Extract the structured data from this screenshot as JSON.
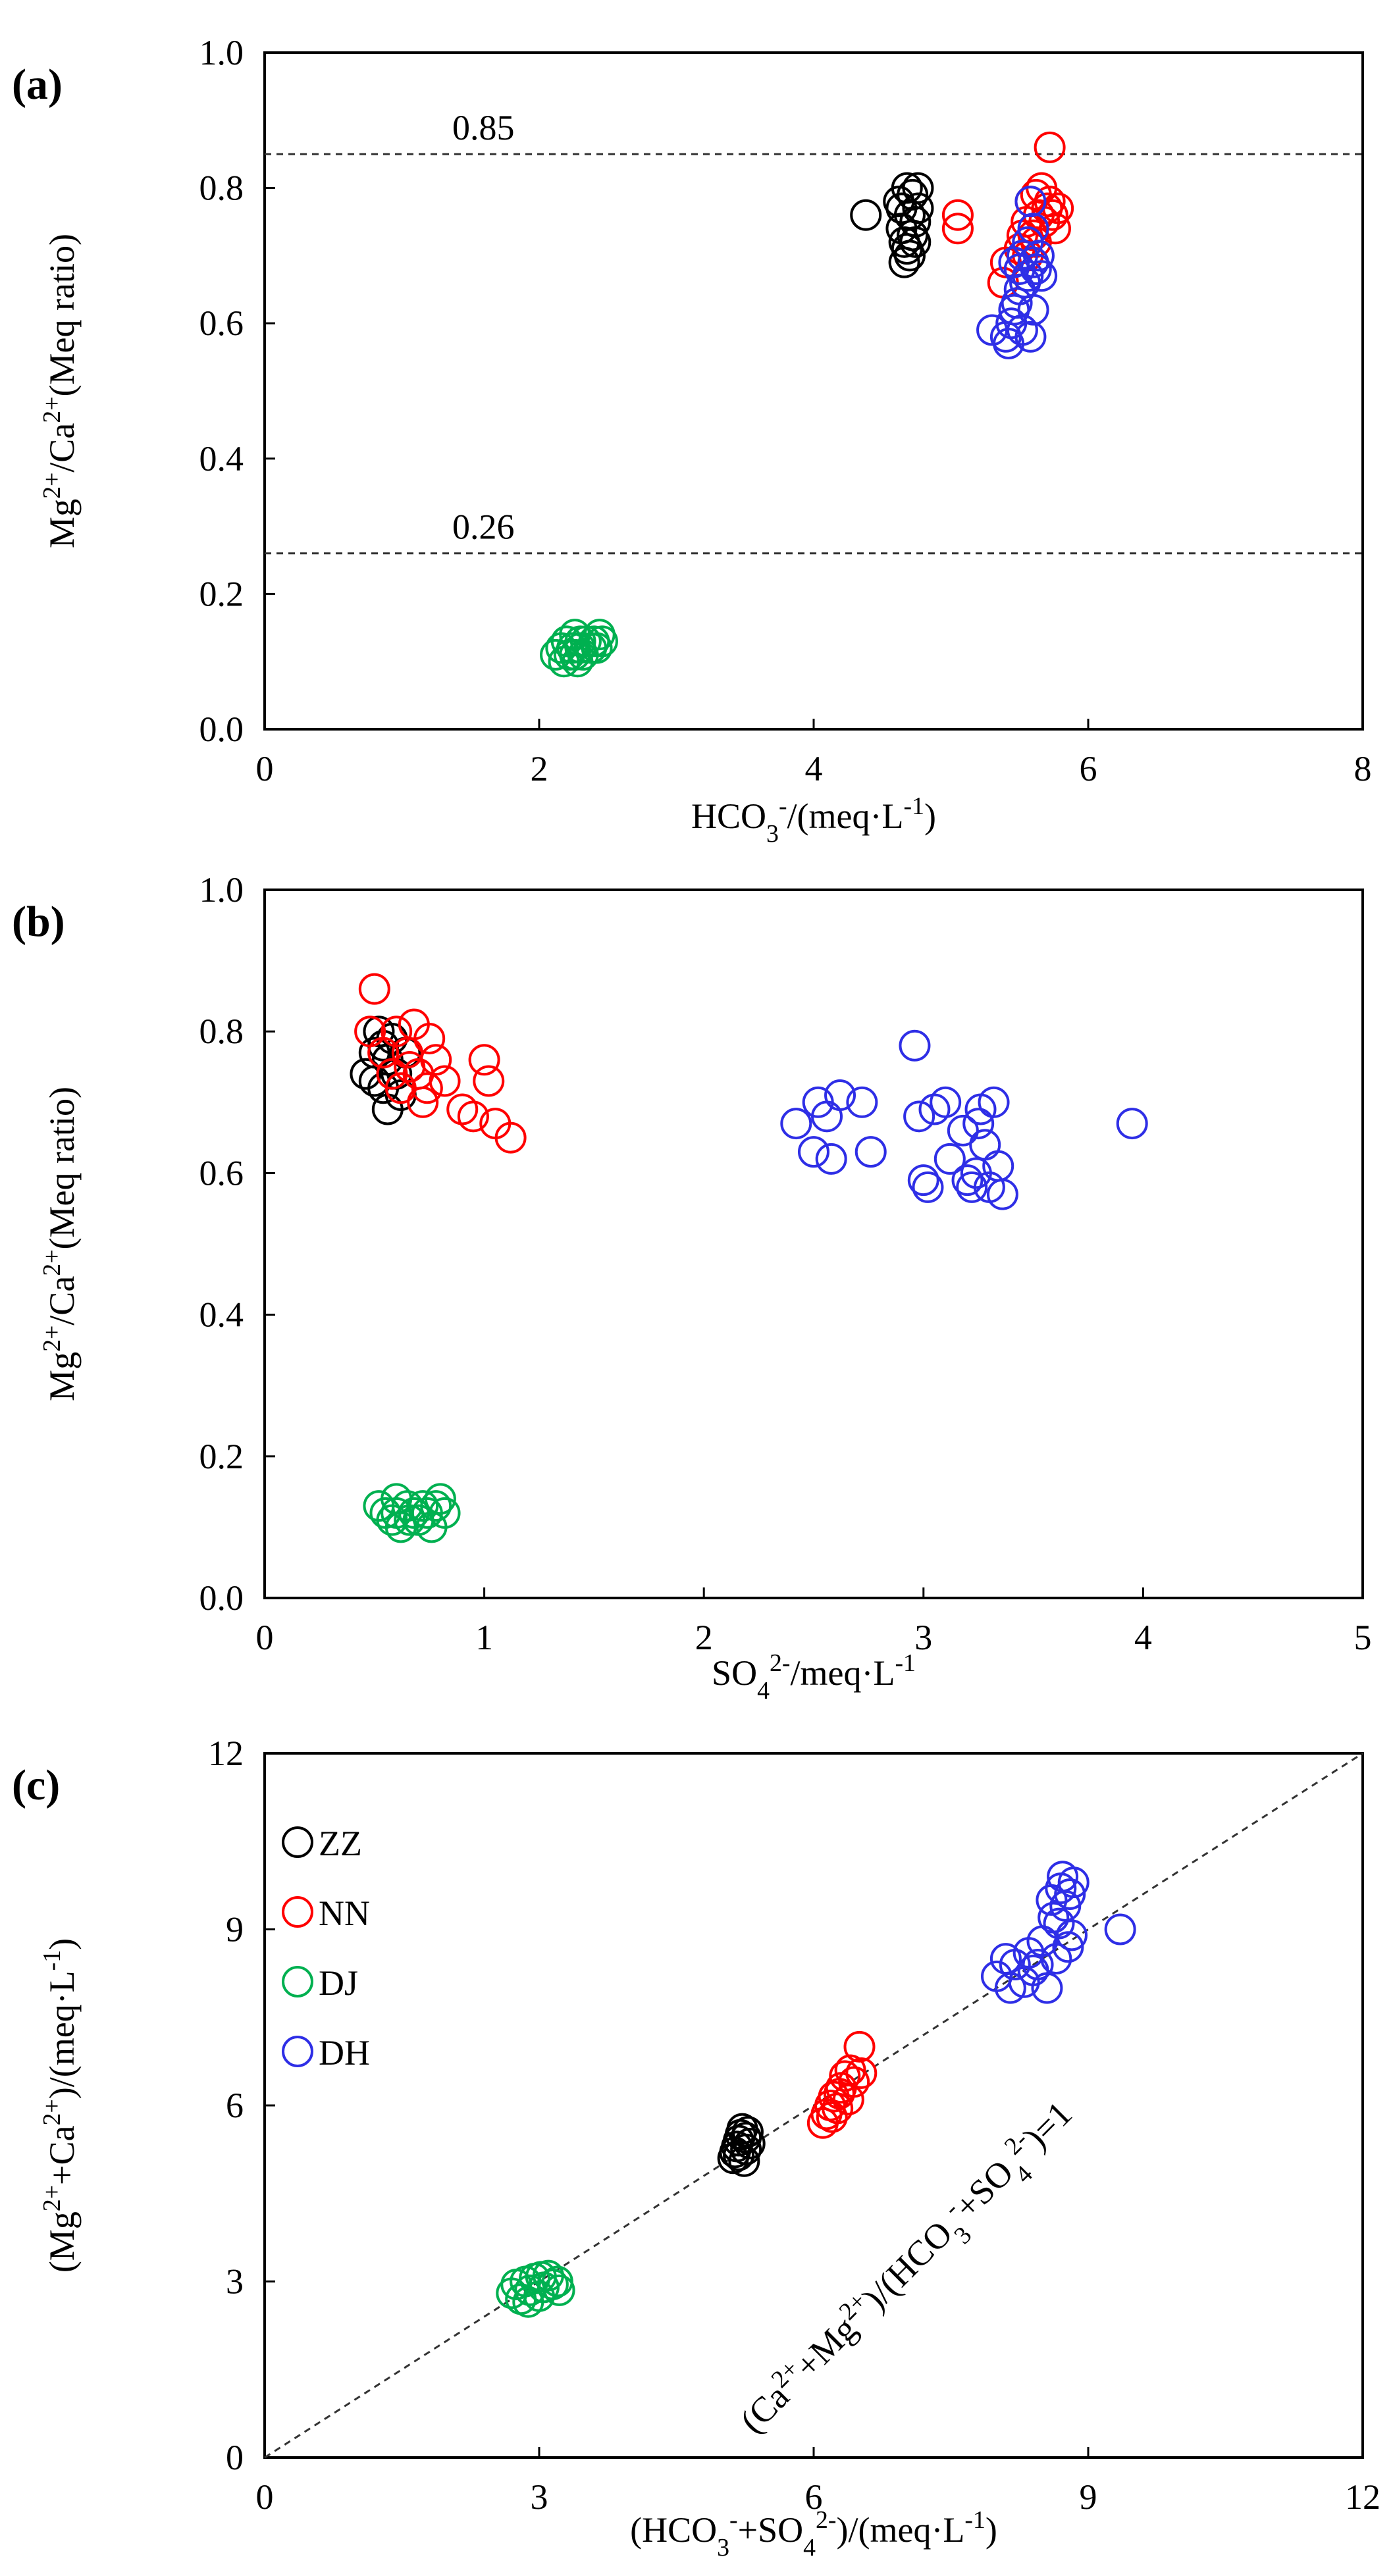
{
  "figure": {
    "panels": [
      "(a)",
      "(b)",
      "(c)"
    ]
  },
  "colors": {
    "ZZ": "#000000",
    "NN": "#ff0000",
    "DJ": "#00b050",
    "DH": "#2e2ee6"
  },
  "chart_data": [
    {
      "id": "a",
      "type": "scatter",
      "panel_label": "(a)",
      "xlabel": "HCO3-/(meq·L-1)",
      "ylabel": "Mg2+/Ca2+(Meq ratio)",
      "xlim": [
        0,
        8
      ],
      "ylim": [
        0,
        1.0
      ],
      "x_ticks": [
        0,
        2,
        4,
        6,
        8
      ],
      "x_tick_labels": [
        "0",
        "2",
        "4",
        "6",
        "8"
      ],
      "y_ticks": [
        0,
        0.2,
        0.4,
        0.6,
        0.8,
        1.0
      ],
      "y_tick_labels": [
        "0.0",
        "0.2",
        "0.4",
        "0.6",
        "0.8",
        "1.0"
      ],
      "reference_lines": [
        {
          "y": 0.85,
          "label": "0.85"
        },
        {
          "y": 0.26,
          "label": "0.26"
        }
      ],
      "series": [
        {
          "name": "ZZ",
          "points": [
            [
              4.38,
              0.76
            ],
            [
              4.62,
              0.78
            ],
            [
              4.64,
              0.74
            ],
            [
              4.66,
              0.72
            ],
            [
              4.68,
              0.8
            ],
            [
              4.7,
              0.76
            ],
            [
              4.7,
              0.7
            ],
            [
              4.72,
              0.79
            ],
            [
              4.72,
              0.73
            ],
            [
              4.74,
              0.75
            ],
            [
              4.66,
              0.69
            ],
            [
              4.76,
              0.77
            ],
            [
              4.68,
              0.71
            ],
            [
              4.64,
              0.77
            ],
            [
              4.74,
              0.72
            ],
            [
              4.76,
              0.8
            ]
          ]
        },
        {
          "name": "NN",
          "points": [
            [
              5.05,
              0.76
            ],
            [
              5.05,
              0.74
            ],
            [
              5.38,
              0.66
            ],
            [
              5.4,
              0.69
            ],
            [
              5.5,
              0.71
            ],
            [
              5.52,
              0.73
            ],
            [
              5.55,
              0.75
            ],
            [
              5.58,
              0.78
            ],
            [
              5.6,
              0.73
            ],
            [
              5.62,
              0.79
            ],
            [
              5.64,
              0.76
            ],
            [
              5.66,
              0.8
            ],
            [
              5.68,
              0.75
            ],
            [
              5.7,
              0.77
            ],
            [
              5.72,
              0.86
            ],
            [
              5.72,
              0.78
            ],
            [
              5.74,
              0.76
            ],
            [
              5.76,
              0.74
            ],
            [
              5.78,
              0.77
            ],
            [
              5.56,
              0.7
            ],
            [
              5.62,
              0.72
            ]
          ]
        },
        {
          "name": "DJ",
          "points": [
            [
              2.12,
              0.11
            ],
            [
              2.16,
              0.12
            ],
            [
              2.18,
              0.1
            ],
            [
              2.2,
              0.13
            ],
            [
              2.22,
              0.11
            ],
            [
              2.24,
              0.12
            ],
            [
              2.26,
              0.14
            ],
            [
              2.28,
              0.1
            ],
            [
              2.3,
              0.12
            ],
            [
              2.32,
              0.11
            ],
            [
              2.34,
              0.13
            ],
            [
              2.38,
              0.12
            ],
            [
              2.4,
              0.13
            ],
            [
              2.42,
              0.12
            ],
            [
              2.44,
              0.14
            ],
            [
              2.46,
              0.13
            ],
            [
              2.26,
              0.11
            ],
            [
              2.3,
              0.13
            ]
          ]
        },
        {
          "name": "DH",
          "points": [
            [
              5.3,
              0.59
            ],
            [
              5.4,
              0.58
            ],
            [
              5.42,
              0.57
            ],
            [
              5.44,
              0.6
            ],
            [
              5.46,
              0.62
            ],
            [
              5.48,
              0.63
            ],
            [
              5.5,
              0.65
            ],
            [
              5.5,
              0.68
            ],
            [
              5.52,
              0.7
            ],
            [
              5.54,
              0.66
            ],
            [
              5.56,
              0.67
            ],
            [
              5.56,
              0.72
            ],
            [
              5.58,
              0.78
            ],
            [
              5.6,
              0.69
            ],
            [
              5.6,
              0.62
            ],
            [
              5.62,
              0.68
            ],
            [
              5.64,
              0.7
            ],
            [
              5.66,
              0.67
            ],
            [
              5.52,
              0.59
            ],
            [
              5.58,
              0.58
            ],
            [
              5.46,
              0.69
            ],
            [
              5.6,
              0.74
            ]
          ]
        }
      ]
    },
    {
      "id": "b",
      "type": "scatter",
      "panel_label": "(b)",
      "xlabel": "SO42-/meq·L-1",
      "ylabel": "Mg2+/Ca2+(Meq ratio)",
      "xlim": [
        0,
        5
      ],
      "ylim": [
        0,
        1.0
      ],
      "x_ticks": [
        0,
        1,
        2,
        3,
        4,
        5
      ],
      "x_tick_labels": [
        "0",
        "1",
        "2",
        "3",
        "4",
        "5"
      ],
      "y_ticks": [
        0,
        0.2,
        0.4,
        0.6,
        0.8,
        1.0
      ],
      "y_tick_labels": [
        "0.0",
        "0.2",
        "0.4",
        "0.6",
        "0.8",
        "1.0"
      ],
      "reference_lines": [],
      "series": [
        {
          "name": "ZZ",
          "points": [
            [
              0.46,
              0.74
            ],
            [
              0.5,
              0.77
            ],
            [
              0.52,
              0.8
            ],
            [
              0.54,
              0.72
            ],
            [
              0.56,
              0.76
            ],
            [
              0.56,
              0.69
            ],
            [
              0.58,
              0.79
            ],
            [
              0.6,
              0.74
            ],
            [
              0.62,
              0.71
            ],
            [
              0.64,
              0.77
            ],
            [
              0.5,
              0.73
            ],
            [
              0.54,
              0.78
            ]
          ]
        },
        {
          "name": "NN",
          "points": [
            [
              0.5,
              0.86
            ],
            [
              0.48,
              0.8
            ],
            [
              0.54,
              0.77
            ],
            [
              0.58,
              0.74
            ],
            [
              0.6,
              0.8
            ],
            [
              0.62,
              0.72
            ],
            [
              0.65,
              0.77
            ],
            [
              0.68,
              0.81
            ],
            [
              0.7,
              0.74
            ],
            [
              0.72,
              0.7
            ],
            [
              0.75,
              0.79
            ],
            [
              0.78,
              0.76
            ],
            [
              0.82,
              0.73
            ],
            [
              0.9,
              0.69
            ],
            [
              0.95,
              0.68
            ],
            [
              1.0,
              0.76
            ],
            [
              1.02,
              0.73
            ],
            [
              1.05,
              0.67
            ],
            [
              1.12,
              0.65
            ],
            [
              0.66,
              0.75
            ],
            [
              0.74,
              0.72
            ]
          ]
        },
        {
          "name": "DJ",
          "points": [
            [
              0.52,
              0.13
            ],
            [
              0.55,
              0.12
            ],
            [
              0.58,
              0.11
            ],
            [
              0.6,
              0.12
            ],
            [
              0.62,
              0.1
            ],
            [
              0.65,
              0.13
            ],
            [
              0.68,
              0.12
            ],
            [
              0.7,
              0.11
            ],
            [
              0.72,
              0.13
            ],
            [
              0.74,
              0.12
            ],
            [
              0.76,
              0.1
            ],
            [
              0.78,
              0.13
            ],
            [
              0.8,
              0.14
            ],
            [
              0.82,
              0.12
            ],
            [
              0.66,
              0.11
            ],
            [
              0.6,
              0.14
            ]
          ]
        },
        {
          "name": "DH",
          "points": [
            [
              2.42,
              0.67
            ],
            [
              2.5,
              0.63
            ],
            [
              2.52,
              0.7
            ],
            [
              2.56,
              0.68
            ],
            [
              2.58,
              0.62
            ],
            [
              2.62,
              0.71
            ],
            [
              2.72,
              0.7
            ],
            [
              2.76,
              0.63
            ],
            [
              2.96,
              0.78
            ],
            [
              2.98,
              0.68
            ],
            [
              3.0,
              0.59
            ],
            [
              3.02,
              0.58
            ],
            [
              3.05,
              0.69
            ],
            [
              3.1,
              0.7
            ],
            [
              3.12,
              0.62
            ],
            [
              3.2,
              0.59
            ],
            [
              3.22,
              0.58
            ],
            [
              3.25,
              0.67
            ],
            [
              3.26,
              0.69
            ],
            [
              3.28,
              0.64
            ],
            [
              3.3,
              0.58
            ],
            [
              3.32,
              0.7
            ],
            [
              3.34,
              0.61
            ],
            [
              3.36,
              0.57
            ],
            [
              3.24,
              0.6
            ],
            [
              3.18,
              0.66
            ],
            [
              3.95,
              0.67
            ]
          ]
        }
      ]
    },
    {
      "id": "c",
      "type": "scatter",
      "panel_label": "(c)",
      "xlabel": "(HCO3-+SO42-)/(meq·L-1)",
      "ylabel": "(Mg2++Ca2+)/(meq·L-1)",
      "xlim": [
        0,
        12
      ],
      "ylim": [
        0,
        12
      ],
      "x_ticks": [
        0,
        3,
        6,
        9,
        12
      ],
      "x_tick_labels": [
        "0",
        "3",
        "6",
        "9",
        "12"
      ],
      "y_ticks": [
        0,
        3,
        6,
        9,
        12
      ],
      "y_tick_labels": [
        "0",
        "3",
        "6",
        "9",
        "12"
      ],
      "reference_line_1to1": {
        "label": "(Ca2++Mg2+)/(HCO3-+SO42-)=1"
      },
      "legend": {
        "position": "top-left",
        "entries": [
          "ZZ",
          "NN",
          "DJ",
          "DH"
        ]
      },
      "series": [
        {
          "name": "ZZ",
          "points": [
            [
              5.12,
              5.1
            ],
            [
              5.14,
              5.2
            ],
            [
              5.16,
              5.3
            ],
            [
              5.18,
              5.4
            ],
            [
              5.2,
              5.5
            ],
            [
              5.22,
              5.6
            ],
            [
              5.24,
              5.05
            ],
            [
              5.26,
              5.45
            ],
            [
              5.28,
              5.55
            ],
            [
              5.3,
              5.35
            ],
            [
              5.18,
              5.15
            ],
            [
              5.26,
              5.25
            ]
          ]
        },
        {
          "name": "NN",
          "points": [
            [
              6.1,
              5.7
            ],
            [
              6.14,
              5.85
            ],
            [
              6.18,
              6.0
            ],
            [
              6.22,
              6.15
            ],
            [
              6.26,
              5.95
            ],
            [
              6.3,
              6.3
            ],
            [
              6.34,
              6.5
            ],
            [
              6.38,
              6.1
            ],
            [
              6.4,
              6.6
            ],
            [
              6.44,
              6.4
            ],
            [
              6.5,
              7.0
            ],
            [
              6.52,
              6.55
            ],
            [
              6.2,
              5.8
            ],
            [
              6.28,
              6.2
            ]
          ]
        },
        {
          "name": "DJ",
          "points": [
            [
              2.7,
              2.8
            ],
            [
              2.75,
              2.95
            ],
            [
              2.8,
              2.7
            ],
            [
              2.85,
              3.0
            ],
            [
              2.9,
              2.85
            ],
            [
              2.95,
              3.05
            ],
            [
              3.0,
              2.75
            ],
            [
              3.05,
              2.9
            ],
            [
              3.1,
              3.1
            ],
            [
              3.15,
              2.95
            ],
            [
              3.2,
              3.0
            ],
            [
              3.22,
              2.85
            ],
            [
              2.88,
              2.65
            ],
            [
              3.02,
              3.08
            ]
          ]
        },
        {
          "name": "DH",
          "points": [
            [
              8.0,
              8.2
            ],
            [
              8.1,
              8.5
            ],
            [
              8.15,
              8.0
            ],
            [
              8.2,
              8.4
            ],
            [
              8.3,
              8.1
            ],
            [
              8.35,
              8.6
            ],
            [
              8.4,
              8.3
            ],
            [
              8.5,
              8.8
            ],
            [
              8.55,
              8.0
            ],
            [
              8.6,
              9.5
            ],
            [
              8.62,
              9.2
            ],
            [
              8.65,
              8.5
            ],
            [
              8.7,
              9.7
            ],
            [
              8.72,
              9.9
            ],
            [
              8.75,
              9.4
            ],
            [
              8.78,
              8.7
            ],
            [
              8.8,
              9.6
            ],
            [
              8.82,
              8.9
            ],
            [
              8.84,
              9.8
            ],
            [
              9.35,
              9.0
            ],
            [
              8.45,
              8.4
            ],
            [
              8.68,
              9.1
            ]
          ]
        }
      ]
    }
  ]
}
